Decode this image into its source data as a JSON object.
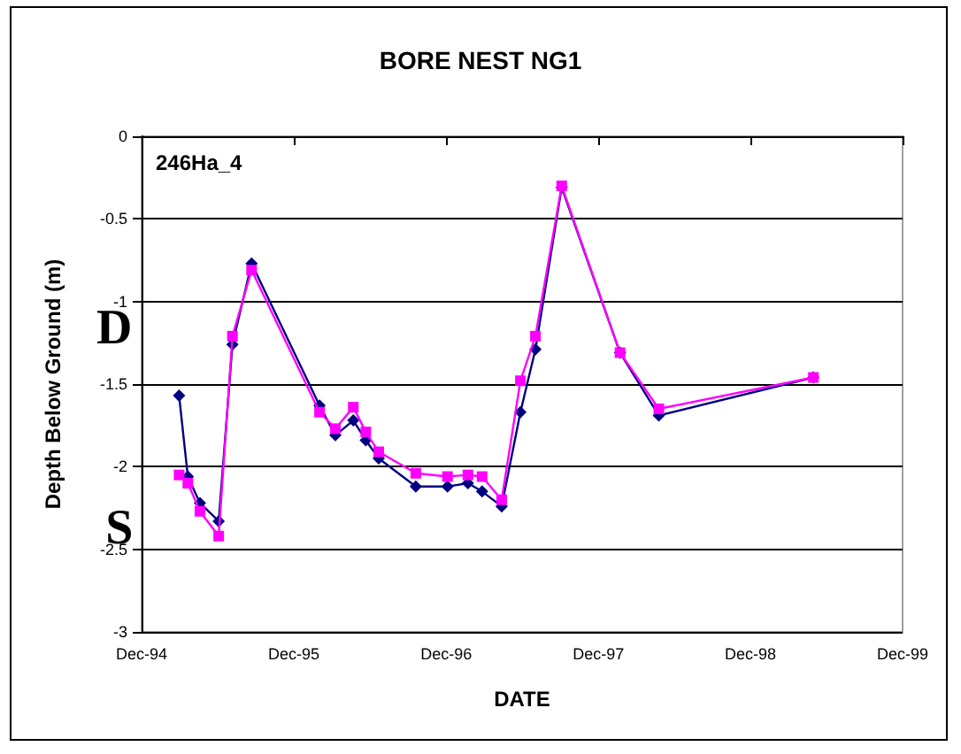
{
  "chart_data": {
    "type": "line",
    "title": "BORE NEST NG1",
    "xlabel": "DATE",
    "ylabel": "Depth Below Ground (m)",
    "annotations": [
      "246Ha_4"
    ],
    "x": [
      "1995-03-01",
      "1995-03-22",
      "1995-04-20",
      "1995-06-04",
      "1995-07-07",
      "1995-08-22",
      "1996-02-01",
      "1996-03-10",
      "1996-04-22",
      "1996-05-22",
      "1996-06-22",
      "1996-09-19",
      "1996-12-04",
      "1997-01-22",
      "1997-02-25",
      "1997-04-13",
      "1997-05-28",
      "1997-07-03",
      "1997-09-04",
      "1998-01-22",
      "1998-04-25",
      "1999-05-01"
    ],
    "series": [
      {
        "name": "D",
        "color": "#000080",
        "marker": "diamond",
        "values": [
          -1.57,
          -2.06,
          -2.22,
          -2.33,
          -1.26,
          -0.77,
          -1.63,
          -1.81,
          -1.72,
          -1.84,
          -1.95,
          -2.12,
          -2.12,
          -2.1,
          -2.15,
          -2.24,
          -1.67,
          -1.29,
          -0.31,
          -1.31,
          -1.69,
          -1.46
        ]
      },
      {
        "name": "S",
        "color": "#ff00ff",
        "marker": "square",
        "values": [
          -2.05,
          -2.1,
          -2.27,
          -2.42,
          -1.21,
          -0.81,
          -1.67,
          -1.77,
          -1.64,
          -1.79,
          -1.91,
          -2.04,
          -2.06,
          -2.05,
          -2.06,
          -2.2,
          -1.48,
          -1.21,
          -0.3,
          -1.31,
          -1.65,
          -1.46
        ]
      }
    ],
    "xlim": [
      "1994-12-01",
      "1999-12-01"
    ],
    "xticks": [
      {
        "value": "1994-12-01",
        "label": "Dec-94"
      },
      {
        "value": "1995-12-01",
        "label": "Dec-95"
      },
      {
        "value": "1996-12-01",
        "label": "Dec-96"
      },
      {
        "value": "1997-12-01",
        "label": "Dec-97"
      },
      {
        "value": "1998-12-01",
        "label": "Dec-98"
      },
      {
        "value": "1999-12-01",
        "label": "Dec-99"
      }
    ],
    "ylim": [
      -3,
      0
    ],
    "yticks": [
      -3,
      -2.5,
      -2,
      -1.5,
      -1,
      -0.5,
      0
    ],
    "grid": "y",
    "legend": false,
    "line_style": "solid"
  }
}
